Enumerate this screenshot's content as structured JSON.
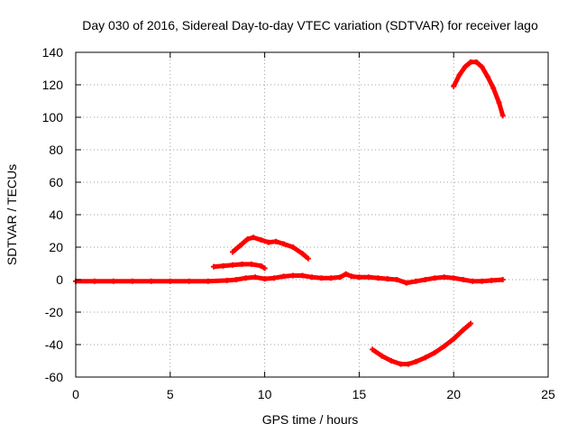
{
  "chart_data": {
    "type": "line",
    "title": "Day 030 of 2016, Sidereal Day-to-day VTEC variation (SDTVAR) for receiver lago",
    "xlabel": "GPS time / hours",
    "ylabel": "SDTVAR / TECUs",
    "xlim": [
      0,
      25
    ],
    "ylim": [
      -60,
      140
    ],
    "xticks": [
      "0",
      "5",
      "10",
      "15",
      "20",
      "25"
    ],
    "yticks": [
      "-60",
      "-40",
      "-20",
      "0",
      "20",
      "40",
      "60",
      "80",
      "100",
      "120",
      "140"
    ],
    "grid": true,
    "series_color": "#ff0000",
    "series": [
      {
        "name": "baseline",
        "points": [
          [
            0,
            -1
          ],
          [
            1,
            -1
          ],
          [
            2,
            -1
          ],
          [
            3,
            -1
          ],
          [
            4,
            -1
          ],
          [
            5,
            -1
          ],
          [
            6,
            -1
          ],
          [
            7,
            -1
          ],
          [
            8,
            -0.5
          ],
          [
            8.5,
            0
          ],
          [
            9,
            1
          ],
          [
            9.5,
            1.5
          ],
          [
            10,
            0.5
          ],
          [
            10.5,
            1
          ],
          [
            11,
            2
          ],
          [
            11.5,
            2.5
          ],
          [
            12,
            2.5
          ],
          [
            12.5,
            1.5
          ],
          [
            13,
            1
          ],
          [
            13.5,
            1
          ],
          [
            14,
            1.5
          ],
          [
            14.3,
            3.5
          ],
          [
            14.6,
            2
          ],
          [
            15,
            1.5
          ],
          [
            15.5,
            1.5
          ],
          [
            16,
            1
          ],
          [
            16.5,
            0.5
          ],
          [
            17,
            0
          ],
          [
            17.5,
            -2
          ],
          [
            18,
            -1
          ],
          [
            18.5,
            0
          ],
          [
            19,
            1
          ],
          [
            19.5,
            1.5
          ],
          [
            20,
            1
          ],
          [
            20.5,
            0
          ],
          [
            21,
            -1
          ],
          [
            21.5,
            -1
          ],
          [
            22,
            -0.5
          ],
          [
            22.6,
            0
          ]
        ]
      },
      {
        "name": "segment-1",
        "points": [
          [
            7.3,
            8
          ],
          [
            7.8,
            8.5
          ],
          [
            8.3,
            9
          ],
          [
            8.8,
            9.5
          ],
          [
            9.3,
            9.5
          ],
          [
            9.8,
            8.5
          ],
          [
            10,
            7
          ]
        ]
      },
      {
        "name": "segment-2",
        "points": [
          [
            8.3,
            17
          ],
          [
            8.7,
            21
          ],
          [
            9.1,
            25
          ],
          [
            9.4,
            26
          ],
          [
            9.8,
            24.5
          ],
          [
            10.2,
            23
          ],
          [
            10.6,
            23.5
          ],
          [
            11,
            22
          ],
          [
            11.5,
            20
          ],
          [
            12,
            16
          ],
          [
            12.3,
            13
          ]
        ]
      },
      {
        "name": "segment-3",
        "points": [
          [
            15.7,
            -43
          ],
          [
            16.2,
            -47
          ],
          [
            16.7,
            -50
          ],
          [
            17.2,
            -52
          ],
          [
            17.6,
            -52
          ],
          [
            18,
            -50.5
          ],
          [
            18.5,
            -48
          ],
          [
            19,
            -45
          ],
          [
            19.5,
            -41
          ],
          [
            20,
            -36.5
          ],
          [
            20.5,
            -31
          ],
          [
            20.9,
            -27
          ]
        ]
      },
      {
        "name": "segment-4",
        "points": [
          [
            20,
            119
          ],
          [
            20.3,
            126
          ],
          [
            20.6,
            131
          ],
          [
            20.9,
            134
          ],
          [
            21.2,
            134
          ],
          [
            21.5,
            131
          ],
          [
            21.8,
            125
          ],
          [
            22.1,
            118
          ],
          [
            22.4,
            109
          ],
          [
            22.6,
            101
          ]
        ]
      }
    ]
  }
}
